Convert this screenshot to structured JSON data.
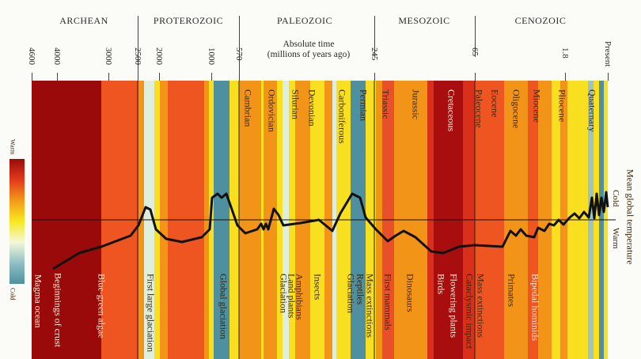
{
  "eras": [
    "ARCHEAN",
    "PROTEROZOIC",
    "PALEOZOIC",
    "MESOZOIC",
    "CENOZOIC"
  ],
  "axis": {
    "title_line1": "Absolute time",
    "title_line2": "(millions of years ago)",
    "ticks": [
      "4600",
      "4000",
      "3000",
      "2500",
      "2000",
      "1000",
      "570",
      "245",
      "65",
      "1.8",
      "Present"
    ]
  },
  "periods": [
    "Cambrian",
    "Ordovician",
    "Silurian",
    "Devonian",
    "Carboniferous",
    "Permian",
    "Triassic",
    "Jurassic",
    "Cretaceous",
    "Paleocene",
    "Eocene",
    "Oligocene",
    "Miocene",
    "Pliocene",
    "Quaternary"
  ],
  "events": [
    "Magma ocean",
    "Beginnings of crust",
    "Blue-green algae",
    "First large glaciation",
    "Global glaciation",
    "Glaciation",
    "Land plants",
    "Amphibians",
    "Insects",
    "Glaciation",
    "Reptiles",
    "Mass extinctions",
    "First mammals",
    "Dinosaurs",
    "Birds",
    "Flowering plants",
    "Cataclysmic impact",
    "Mass extinctions",
    "Primates",
    "Bipedal hominids"
  ],
  "temperature_axis": {
    "title": "Mean global temperature",
    "cold": "Cold",
    "warm": "Warm"
  },
  "legend": {
    "warm": "Warm",
    "cold": "Cold",
    "scale_colors": [
      "#9b0a0a",
      "#e23a1a",
      "#f39a1a",
      "#f8e820",
      "#f4f8d8",
      "#8fc0c4",
      "#4e8fa0"
    ]
  },
  "colors": {
    "dark_red": "#9b0a0a",
    "red_orange": "#ee5520",
    "orange": "#f29418",
    "yellow": "#f8e020",
    "pale": "#dfeedd",
    "teal": "#4e8fa0",
    "curve": "#111111"
  }
}
